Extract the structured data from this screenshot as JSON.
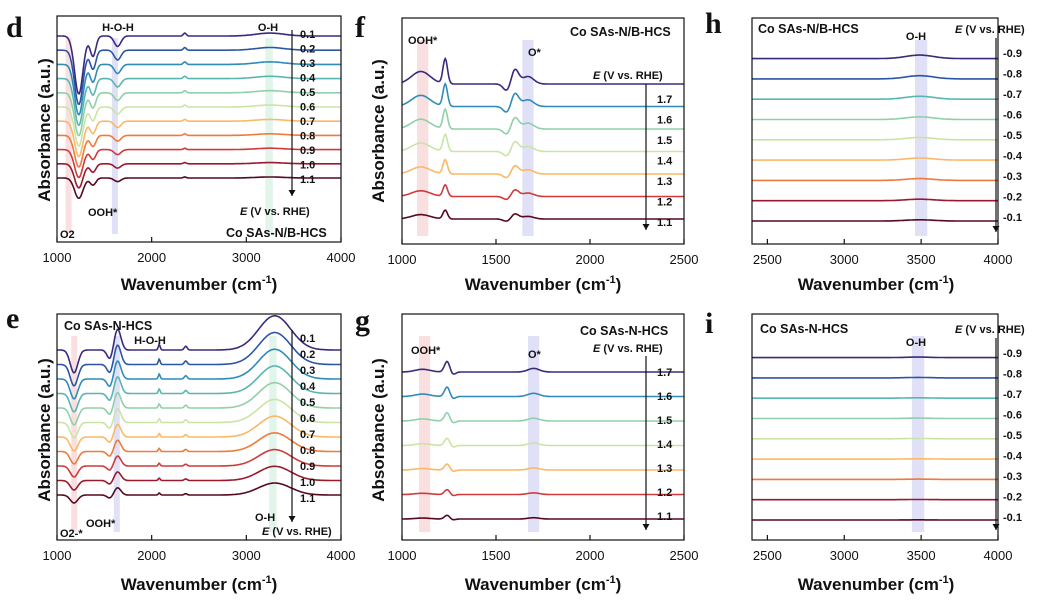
{
  "chart_data": [
    {
      "panel": "d",
      "type": "line",
      "title": "Co SAs-N/B-HCS",
      "xlabel": "Wavenumber (cm",
      "xlabel_sup": "-1",
      "xlabel_end": ")",
      "ylabel": "Absorbance (a.u.)",
      "xlim": [
        1000,
        4000
      ],
      "xticks": [
        "1000",
        "2000",
        "3000",
        "4000"
      ],
      "series_label": "E (V vs. RHE)",
      "potentials": [
        "0.1",
        "0.2",
        "0.3",
        "0.4",
        "0.5",
        "0.6",
        "0.7",
        "0.8",
        "0.9",
        "1.0",
        "1.1"
      ],
      "annotations": [
        "H-O-H",
        "O-H",
        "OOH*",
        "O2"
      ],
      "bands_cm1": [
        [
          1580,
          1640
        ],
        [
          3200,
          3280
        ],
        [
          1090,
          1150
        ]
      ],
      "features": [
        {
          "center": 1230,
          "amplitude": -1.0,
          "width": 45
        },
        {
          "center": 1380,
          "amplitude": -0.35,
          "width": 30
        },
        {
          "center": 1640,
          "amplitude": -0.18,
          "width": 35
        },
        {
          "center": 2350,
          "amplitude": 0.05,
          "width": 15
        },
        {
          "center": 3250,
          "amplitude": 0.05,
          "width": 150
        }
      ]
    },
    {
      "panel": "e",
      "type": "line",
      "title": "Co SAs-N-HCS",
      "xlabel": "Wavenumber (cm",
      "xlabel_sup": "-1",
      "xlabel_end": ")",
      "ylabel": "Absorbance (a.u.)",
      "xlim": [
        1000,
        4000
      ],
      "xticks": [
        "1000",
        "2000",
        "3000",
        "4000"
      ],
      "series_label": "E (V vs. RHE)",
      "potentials": [
        "0.1",
        "0.2",
        "0.3",
        "0.4",
        "0.5",
        "0.6",
        "0.7",
        "0.8",
        "0.9",
        "1.0",
        "1.1"
      ],
      "annotations": [
        "H-O-H",
        "O-H",
        "OOH*",
        "O2-*"
      ],
      "bands_cm1": [
        [
          1600,
          1660
        ],
        [
          3240,
          3320
        ],
        [
          1150,
          1210
        ]
      ],
      "features": [
        {
          "center": 1180,
          "amplitude": -0.6,
          "width": 40
        },
        {
          "center": 1640,
          "amplitude": 0.55,
          "width": 35
        },
        {
          "center": 1560,
          "amplitude": -0.25,
          "width": 30
        },
        {
          "center": 2080,
          "amplitude": 0.15,
          "width": 10
        },
        {
          "center": 2360,
          "amplitude": 0.1,
          "width": 15
        },
        {
          "center": 3300,
          "amplitude": 0.9,
          "width": 170
        }
      ]
    },
    {
      "panel": "f",
      "type": "line",
      "title": "Co SAs-N/B-HCS",
      "xlabel": "Wavenumber (cm",
      "xlabel_sup": "-1",
      "xlabel_end": ")",
      "ylabel": "Absorbance (a.u.)",
      "xlim": [
        1000,
        2500
      ],
      "xticks": [
        "1000",
        "1500",
        "2000",
        "2500"
      ],
      "series_label": "E (V vs. RHE)",
      "potentials": [
        "1.1",
        "1.2",
        "1.3",
        "1.4",
        "1.5",
        "1.6",
        "1.7"
      ],
      "annotations": [
        "OOH*",
        "O*"
      ],
      "bands_cm1": [
        [
          1080,
          1140
        ],
        [
          1640,
          1700
        ]
      ],
      "features": [
        {
          "center": 1100,
          "amplitude": 0.5,
          "width": 50
        },
        {
          "center": 1230,
          "amplitude": 1.0,
          "width": 12
        },
        {
          "center": 1560,
          "amplitude": -0.3,
          "width": 20
        },
        {
          "center": 1600,
          "amplitude": 0.6,
          "width": 20
        },
        {
          "center": 1670,
          "amplitude": 0.3,
          "width": 30
        }
      ]
    },
    {
      "panel": "g",
      "type": "line",
      "title": "Co SAs-N-HCS",
      "xlabel": "Wavenumber (cm",
      "xlabel_sup": "-1",
      "xlabel_end": ")",
      "ylabel": "Absorbance (a.u.)",
      "xlim": [
        1000,
        2500
      ],
      "xticks": [
        "1000",
        "1500",
        "2000",
        "2500"
      ],
      "series_label": "E (V vs. RHE)",
      "potentials": [
        "1.1",
        "1.2",
        "1.3",
        "1.4",
        "1.5",
        "1.6",
        "1.7"
      ],
      "annotations": [
        "OOH*",
        "O*"
      ],
      "bands_cm1": [
        [
          1090,
          1150
        ],
        [
          1670,
          1730
        ]
      ],
      "features": [
        {
          "center": 1110,
          "amplitude": 0.15,
          "width": 40
        },
        {
          "center": 1240,
          "amplitude": 0.6,
          "width": 14
        },
        {
          "center": 1270,
          "amplitude": -0.15,
          "width": 14
        },
        {
          "center": 1700,
          "amplitude": 0.2,
          "width": 30
        }
      ]
    },
    {
      "panel": "h",
      "type": "line",
      "title": "Co SAs-N/B-HCS",
      "xlabel": "Wavenumber (cm",
      "xlabel_sup": "-1",
      "xlabel_end": ")",
      "ylabel": "",
      "xlim": [
        2400,
        4000
      ],
      "xticks": [
        "2500",
        "3000",
        "3500",
        "4000"
      ],
      "series_label": "E (V vs. RHE)",
      "potentials": [
        "-0.1",
        "-0.2",
        "-0.3",
        "-0.4",
        "-0.5",
        "-0.6",
        "-0.7",
        "-0.8",
        "-0.9"
      ],
      "annotations": [
        "O-H"
      ],
      "bands_cm1": [
        [
          3460,
          3540
        ]
      ],
      "features": [
        {
          "center": 3490,
          "amplitude": 0.25,
          "width": 90
        }
      ]
    },
    {
      "panel": "i",
      "type": "line",
      "title": "Co SAs-N-HCS",
      "xlabel": "Wavenumber (cm",
      "xlabel_sup": "-1",
      "xlabel_end": ")",
      "ylabel": "",
      "xlim": [
        2400,
        4000
      ],
      "xticks": [
        "2500",
        "3000",
        "3500",
        "4000"
      ],
      "series_label": "E (V vs. RHE)",
      "potentials": [
        "-0.1",
        "-0.2",
        "-0.3",
        "-0.4",
        "-0.5",
        "-0.6",
        "-0.7",
        "-0.8",
        "-0.9"
      ],
      "annotations": [
        "O-H"
      ],
      "bands_cm1": [
        [
          3440,
          3520
        ]
      ],
      "features": [
        {
          "center": 3480,
          "amplitude": 0.05,
          "width": 80
        }
      ]
    }
  ],
  "colors": {
    "series": [
      "#550a1f",
      "#991a2e",
      "#cf3b3a",
      "#ef7a3b",
      "#fbb866",
      "#fce995",
      "#c9e5a4",
      "#8fd0a8",
      "#58b6b0",
      "#2f8cba",
      "#2c56a4",
      "#3a2a7e"
    ],
    "band_red": "#f4c4c4",
    "band_blue": "#c6c6f0",
    "band_green": "#c8ecd8"
  }
}
